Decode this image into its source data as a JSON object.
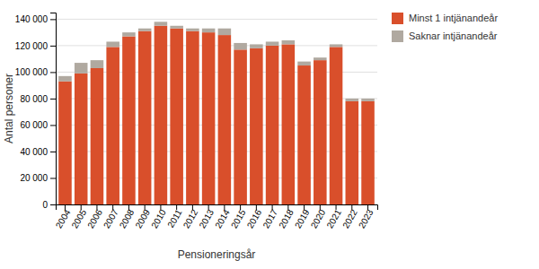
{
  "chart_data": {
    "type": "bar",
    "stacked": true,
    "categories": [
      "2004",
      "2005",
      "2006",
      "2007",
      "2008",
      "2009",
      "2010",
      "2011",
      "2012",
      "2013",
      "2014",
      "2015",
      "2016",
      "2017",
      "2018",
      "2019",
      "2020",
      "2021",
      "2022",
      "2023"
    ],
    "series": [
      {
        "name": "Minst 1 intjänandeår",
        "color": "#d94f2b",
        "values": [
          93000,
          99000,
          103000,
          119000,
          127000,
          131000,
          135000,
          133000,
          131000,
          130000,
          128000,
          117000,
          118000,
          120000,
          121000,
          105000,
          109000,
          119000,
          78000,
          78000
        ]
      },
      {
        "name": "Saknar intjänandeår",
        "color": "#b0a9a0",
        "values": [
          4000,
          8000,
          6000,
          4000,
          3000,
          2000,
          3000,
          2000,
          2000,
          3000,
          5000,
          5000,
          3000,
          3000,
          3000,
          3000,
          2000,
          2000,
          2000,
          2000
        ]
      }
    ],
    "x_label": "Pensioneringsår",
    "y_label": "Antal personer",
    "ylim": [
      0,
      145000
    ],
    "yticks": [
      0,
      {
        "value": 20000,
        "label": "20 000"
      },
      {
        "value": 40000,
        "label": "40 000"
      },
      {
        "value": 60000,
        "label": "60 000"
      },
      {
        "value": 80000,
        "label": "80 000"
      },
      {
        "value": 100000,
        "label": "100 000"
      },
      {
        "value": 120000,
        "label": "120 000"
      },
      {
        "value": 140000,
        "label": "140 000"
      }
    ],
    "grid": true,
    "legend": "right"
  }
}
